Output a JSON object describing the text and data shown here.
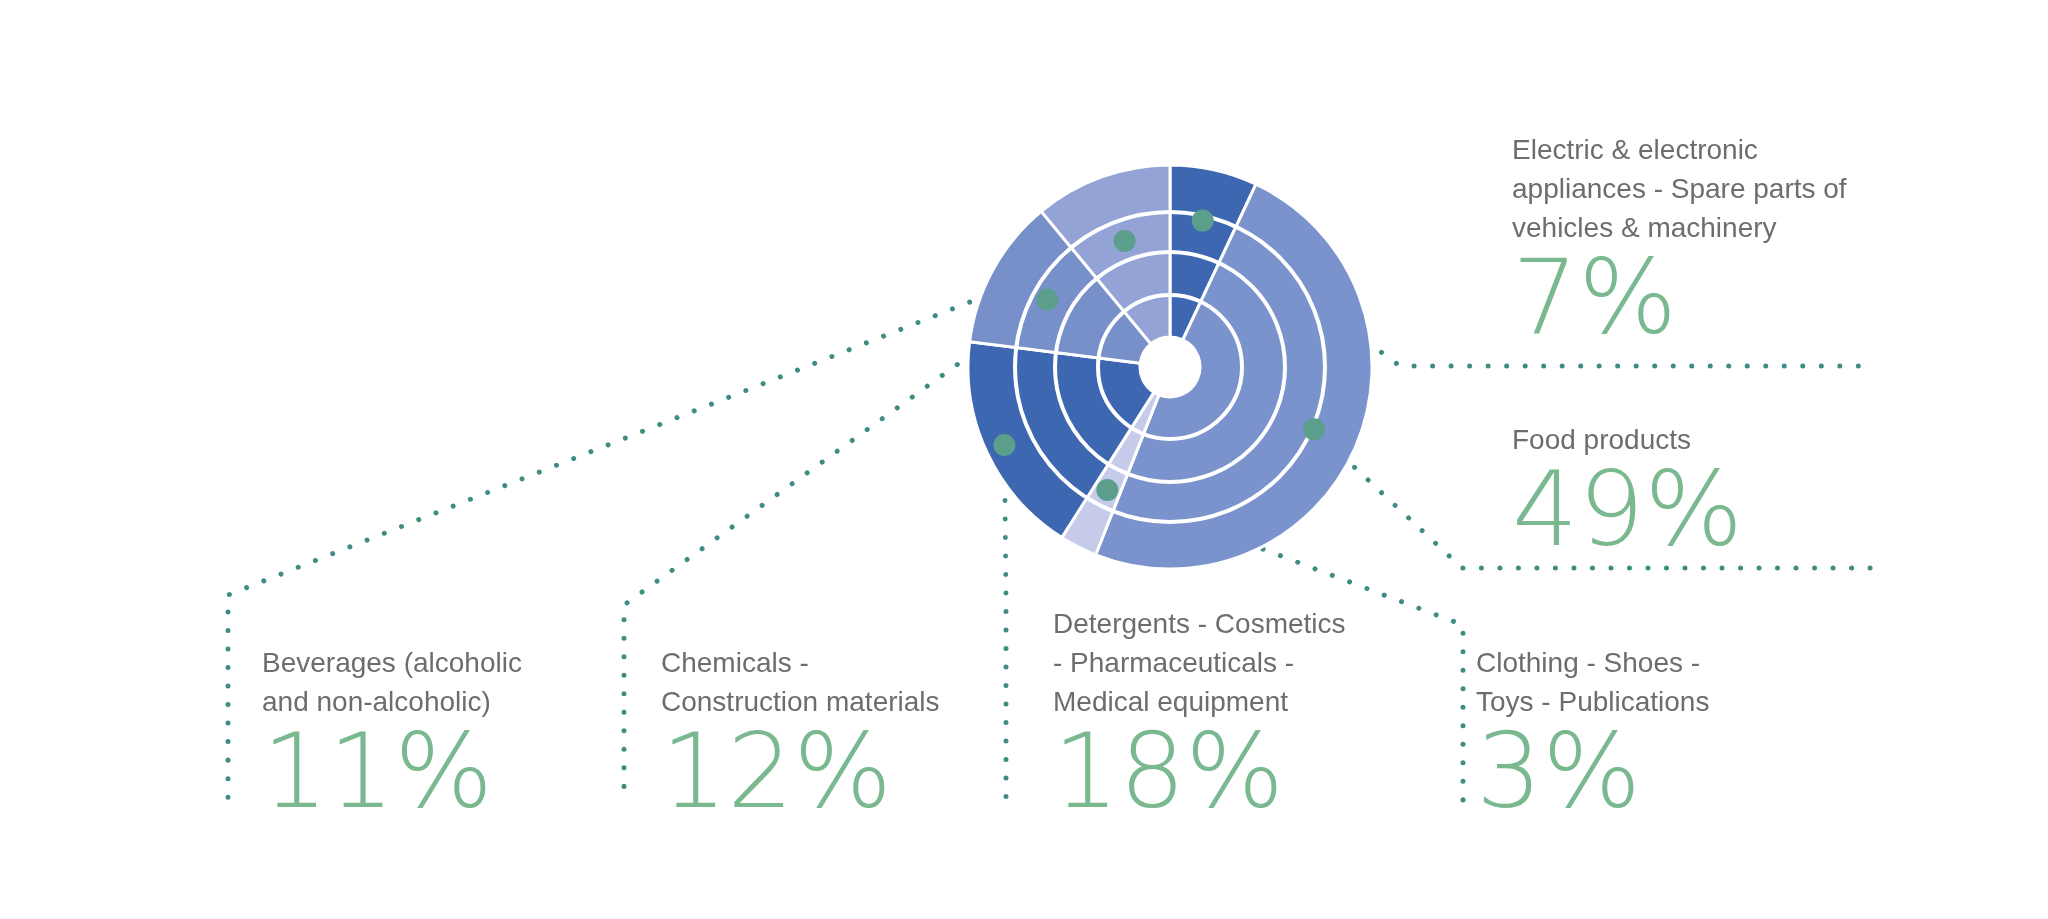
{
  "chart_data": {
    "type": "donut",
    "categories": [
      "Electric & electronic appliances - Spare parts of vehicles & machinery",
      "Food products",
      "Clothing - Shoes - Toys - Publications",
      "Detergents - Cosmetics - Pharmaceuticals - Medical equipment",
      "Chemicals - Construction materials",
      "Beverages (alcoholic and non-alcoholic)"
    ],
    "values": [
      7,
      49,
      3,
      18,
      12,
      11
    ],
    "colors": [
      "#3d67b1",
      "#7b93cc",
      "#c5cbe8",
      "#3d67b1",
      "#7890ca",
      "#93a3d5"
    ],
    "value_labels": [
      "7%",
      "49%",
      "3%",
      "18%",
      "12%",
      "11%"
    ],
    "legend": false
  }
}
